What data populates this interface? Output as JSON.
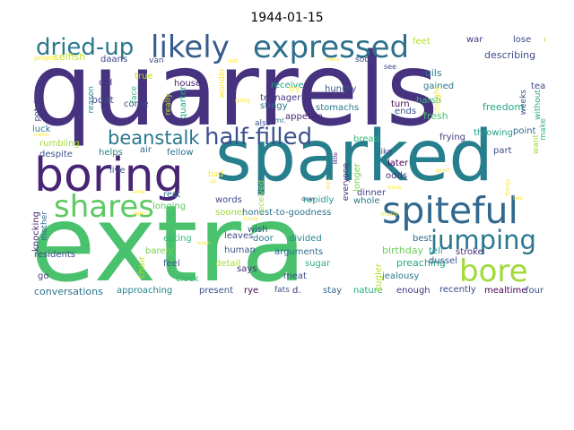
{
  "title": "1944-01-15",
  "words": [
    {
      "text": "quarrels",
      "color": "#46327e"
    },
    {
      "text": "sparked",
      "color": "#277f8e"
    },
    {
      "text": "extra",
      "color": "#4ac16d"
    },
    {
      "text": "boring",
      "color": "#482475"
    },
    {
      "text": "likely",
      "color": "#365c8d"
    },
    {
      "text": "expressed",
      "color": "#2d708e"
    },
    {
      "text": "dried-up",
      "color": "#2a788e"
    },
    {
      "text": "spiteful",
      "color": "#31688e"
    },
    {
      "text": "bore",
      "color": "#a0da39"
    },
    {
      "text": "jumping",
      "color": "#2a788e"
    },
    {
      "text": "shares",
      "color": "#5ec962"
    },
    {
      "text": "half-filled",
      "color": "#3b528b"
    },
    {
      "text": "beanstalk",
      "color": "#2a788e"
    },
    {
      "text": "feet",
      "color": "#b5de2b"
    },
    {
      "text": "war",
      "color": "#46327e"
    },
    {
      "text": "lose",
      "color": "#3e4a89"
    },
    {
      "text": "control",
      "color": "#a5db36"
    },
    {
      "text": "selfish",
      "color": "#c8e020"
    },
    {
      "text": "daans",
      "color": "#3e4a89"
    },
    {
      "text": "soon",
      "color": "#414487"
    },
    {
      "text": "many",
      "color": "#fde725"
    },
    {
      "text": "describing",
      "color": "#3e4a89"
    },
    {
      "text": "gravy",
      "color": "#46327e"
    },
    {
      "text": "oils",
      "color": "#287c8e"
    },
    {
      "text": "gained",
      "color": "#2a788e"
    },
    {
      "text": "harsh",
      "color": "#35b779"
    },
    {
      "text": "fresh",
      "color": "#4ac16d"
    },
    {
      "text": "tears",
      "color": "#414487"
    },
    {
      "text": "freedom",
      "color": "#22a884"
    },
    {
      "text": "true",
      "color": "#bddf26"
    },
    {
      "text": "old",
      "color": "#443983"
    },
    {
      "text": "boat",
      "color": "#3e4a89"
    },
    {
      "text": "house",
      "color": "#482475"
    },
    {
      "text": "receive",
      "color": "#20a486"
    },
    {
      "text": "stingy",
      "color": "#2a788e"
    },
    {
      "text": "hungry",
      "color": "#3b528b"
    },
    {
      "text": "stomachs",
      "color": "#2a788e"
    },
    {
      "text": "turn",
      "color": "#440154"
    },
    {
      "text": "ends",
      "color": "#3b528b"
    },
    {
      "text": "point",
      "color": "#31688e"
    },
    {
      "text": "come",
      "color": "#3e4a89"
    },
    {
      "text": "teenager",
      "color": "#443983"
    },
    {
      "text": "appetite",
      "color": "#482475"
    },
    {
      "text": "luck",
      "color": "#2a788e"
    },
    {
      "text": "rumbling",
      "color": "#a5db36"
    },
    {
      "text": "bread",
      "color": "#35b779"
    },
    {
      "text": "frying",
      "color": "#433e85"
    },
    {
      "text": "throwing",
      "color": "#1fa088"
    },
    {
      "text": "despite",
      "color": "#3b528b"
    },
    {
      "text": "helps",
      "color": "#26828e"
    },
    {
      "text": "air",
      "color": "#31688e"
    },
    {
      "text": "fellow",
      "color": "#2c728e"
    },
    {
      "text": "live",
      "color": "#3b528b"
    },
    {
      "text": "later",
      "color": "#440154"
    },
    {
      "text": "part",
      "color": "#3e4a89"
    },
    {
      "text": "odds",
      "color": "#472c7a"
    },
    {
      "text": "dinner",
      "color": "#414487"
    },
    {
      "text": "rest",
      "color": "#2c728e"
    },
    {
      "text": "rapidly",
      "color": "#1f9e89"
    },
    {
      "text": "whole",
      "color": "#2a788e"
    },
    {
      "text": "words",
      "color": "#3e4a89"
    },
    {
      "text": "longing",
      "color": "#5ec962"
    },
    {
      "text": "sooner",
      "color": "#9bd93c"
    },
    {
      "text": "honest-to-goodness",
      "color": "#2c728e"
    },
    {
      "text": "wish",
      "color": "#3b528b"
    },
    {
      "text": "eating",
      "color": "#35b779"
    },
    {
      "text": "leaves",
      "color": "#3e4a89"
    },
    {
      "text": "best",
      "color": "#31688e"
    },
    {
      "text": "birthday",
      "color": "#6ccd5a"
    },
    {
      "text": "tell",
      "color": "#1f9e89"
    },
    {
      "text": "stroke",
      "color": "#472c7a"
    },
    {
      "text": "door",
      "color": "#2a788e"
    },
    {
      "text": "divided",
      "color": "#25858e"
    },
    {
      "text": "barely",
      "color": "#7ad151"
    },
    {
      "text": "human",
      "color": "#3b528b"
    },
    {
      "text": "arguments",
      "color": "#2d708e"
    },
    {
      "text": "preaching",
      "color": "#22a884"
    },
    {
      "text": "residents",
      "color": "#3e4a89"
    },
    {
      "text": "feel",
      "color": "#3b528b"
    },
    {
      "text": "detail",
      "color": "#a5db36"
    },
    {
      "text": "sugar",
      "color": "#29af7f"
    },
    {
      "text": "dussel",
      "color": "#3b528b"
    },
    {
      "text": "jealousy",
      "color": "#2a788e"
    },
    {
      "text": "go",
      "color": "#443983"
    },
    {
      "text": "clock",
      "color": "#35b779"
    },
    {
      "text": "says",
      "color": "#472c7a"
    },
    {
      "text": "meat",
      "color": "#3e4a89"
    },
    {
      "text": "conversations",
      "color": "#2c728e"
    },
    {
      "text": "approaching",
      "color": "#26828e"
    },
    {
      "text": "present",
      "color": "#3b528b"
    },
    {
      "text": "rye",
      "color": "#440154"
    },
    {
      "text": "fats",
      "color": "#3b528b"
    },
    {
      "text": "d.",
      "color": "#472c7a"
    },
    {
      "text": "stay",
      "color": "#31688e"
    },
    {
      "text": "nature",
      "color": "#22a884"
    },
    {
      "text": "enough",
      "color": "#453781"
    },
    {
      "text": "recently",
      "color": "#3e4a89"
    },
    {
      "text": "mealtime",
      "color": "#440154"
    },
    {
      "text": "four",
      "color": "#3b528b"
    },
    {
      "text": "believe",
      "color": "#b5de2b"
    },
    {
      "text": "potatoes",
      "color": "#3e4a89"
    },
    {
      "text": "reason",
      "color": "#26828e"
    },
    {
      "text": "face",
      "color": "#35b779"
    },
    {
      "text": "really",
      "color": "#b5de2b"
    },
    {
      "text": "quarter",
      "color": "#22a884"
    },
    {
      "text": "wonder",
      "color": "#fde725"
    },
    {
      "text": "insight",
      "color": "#fde725"
    },
    {
      "text": "weeks",
      "color": "#3b528b"
    },
    {
      "text": "without",
      "color": "#22a884"
    },
    {
      "text": "make",
      "color": "#35b779"
    },
    {
      "text": "want",
      "color": "#a5db36"
    },
    {
      "text": "knocking",
      "color": "#472c7a"
    },
    {
      "text": "mother",
      "color": "#31688e"
    },
    {
      "text": "chair",
      "color": "#b5de2b"
    },
    {
      "text": "received",
      "color": "#a0da39"
    },
    {
      "text": "everyone",
      "color": "#482475"
    },
    {
      "text": "longer",
      "color": "#7ad151"
    },
    {
      "text": "kugler",
      "color": "#b5de2b"
    },
    {
      "text": "van",
      "color": "#3e4a89"
    },
    {
      "text": "mr.",
      "color": "#31688e"
    },
    {
      "text": "also",
      "color": "#3b528b"
    },
    {
      "text": "try",
      "color": "#fde725"
    },
    {
      "text": "see",
      "color": "#3e4a89"
    },
    {
      "text": "like",
      "color": "#3e4a89"
    },
    {
      "text": "people",
      "color": "#fde725"
    },
    {
      "text": "came",
      "color": "#fde725"
    },
    {
      "text": "lost",
      "color": "#fde725"
    },
    {
      "text": "going",
      "color": "#fde725"
    },
    {
      "text": "little",
      "color": "#482475"
    },
    {
      "text": "good",
      "color": "#fde725"
    },
    {
      "text": "mrs.",
      "color": "#fde725"
    },
    {
      "text": "daan",
      "color": "#3b528b"
    },
    {
      "text": "since",
      "color": "#fde725"
    },
    {
      "text": "things",
      "color": "#fde725"
    },
    {
      "text": "two",
      "color": "#fde725"
    },
    {
      "text": "know",
      "color": "#fde725"
    },
    {
      "text": "peter",
      "color": "#fde725"
    },
    {
      "text": "time",
      "color": "#fde725"
    },
    {
      "text": "even",
      "color": "#fde725"
    },
    {
      "text": "much",
      "color": "#fde725"
    },
    {
      "text": "bad",
      "color": "#fde725"
    },
    {
      "text": "us",
      "color": "#fde725"
    }
  ]
}
